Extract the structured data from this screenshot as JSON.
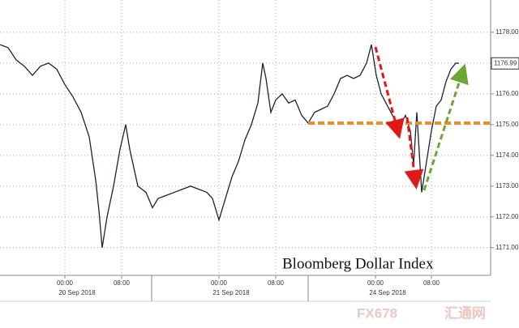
{
  "chart_data": {
    "type": "line",
    "title": "Bloomberg Dollar Index",
    "x": [
      0,
      10,
      20,
      30,
      40,
      50,
      60,
      70,
      80,
      90,
      100,
      110,
      118,
      122,
      126,
      132,
      140,
      148,
      155,
      160,
      170,
      180,
      188,
      195,
      205,
      215,
      225,
      235,
      245,
      255,
      262,
      270,
      278,
      286,
      294,
      302,
      310,
      318,
      324,
      328,
      334,
      340,
      348,
      356,
      364,
      372,
      380,
      388,
      396,
      404,
      412,
      420,
      428,
      436,
      444,
      452,
      458,
      464,
      470,
      478,
      486,
      494,
      500,
      506,
      510,
      514,
      520,
      526,
      532,
      538,
      544,
      550,
      556,
      562,
      566
    ],
    "series": [
      {
        "color": "#1c2233",
        "values": [
          1177.6,
          1177.5,
          1177.1,
          1176.9,
          1176.6,
          1176.9,
          1177.0,
          1176.8,
          1176.3,
          1175.9,
          1175.4,
          1174.6,
          1173.2,
          1172.2,
          1171.0,
          1172.0,
          1173.0,
          1174.2,
          1175.0,
          1174.2,
          1173.0,
          1172.8,
          1172.3,
          1172.6,
          1172.7,
          1172.8,
          1172.9,
          1173.0,
          1172.9,
          1172.8,
          1172.6,
          1171.9,
          1172.6,
          1173.3,
          1173.8,
          1174.5,
          1175.0,
          1175.7,
          1177.0,
          1176.5,
          1175.4,
          1175.8,
          1176.0,
          1175.7,
          1175.8,
          1175.3,
          1175.05,
          1175.4,
          1175.5,
          1175.6,
          1176.0,
          1176.5,
          1176.6,
          1176.5,
          1176.6,
          1177.0,
          1177.6,
          1176.6,
          1176.0,
          1175.6,
          1175.2,
          1175.0,
          1175.3,
          1174.8,
          1173.7,
          1175.4,
          1172.8,
          1173.8,
          1174.8,
          1175.6,
          1175.8,
          1176.4,
          1176.8,
          1177.0,
          1176.99
        ]
      }
    ],
    "xlim": [
      0,
      605
    ],
    "xticks": [
      {
        "value": 80,
        "label": "00:00"
      },
      {
        "value": 150,
        "label": "08:00"
      },
      {
        "value": 270,
        "label": "00:00"
      },
      {
        "value": 340,
        "label": "08:00"
      },
      {
        "value": 463,
        "label": "00:00"
      },
      {
        "value": 532,
        "label": "08:00"
      }
    ],
    "date_labels": [
      {
        "value": 95,
        "label": "20 Sep 2018"
      },
      {
        "value": 285,
        "label": "21 Sep 2018"
      },
      {
        "value": 478,
        "label": "24 Sep 2018"
      }
    ],
    "ylim": [
      1170.1,
      1179.05
    ],
    "yticks": [
      {
        "value": 1171,
        "label": "1171.00"
      },
      {
        "value": 1172,
        "label": "1172.00"
      },
      {
        "value": 1173,
        "label": "1173.00"
      },
      {
        "value": 1174,
        "label": "1174.00"
      },
      {
        "value": 1175,
        "label": "1175.00"
      },
      {
        "value": 1176,
        "label": "1176.00"
      },
      {
        "value": 1177,
        "label": "1177.00"
      },
      {
        "value": 1178,
        "label": "1178.00"
      }
    ],
    "grid": true,
    "last_price": {
      "value": 1176.99,
      "label": "1176.99"
    },
    "reference_line": {
      "value": 1175.05,
      "start": 380,
      "color": "#e8902a"
    },
    "watermark": [
      "FX678",
      "汇通网"
    ]
  }
}
